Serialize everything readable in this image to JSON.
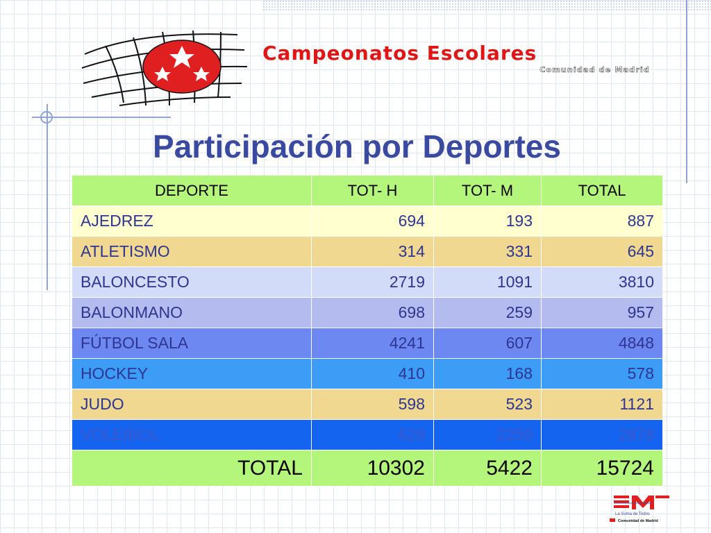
{
  "brand": {
    "title": "Campeonatos Escolares",
    "subtitle": "Comunidad de Madrid"
  },
  "page": {
    "title": "Participación por Deportes"
  },
  "colors": {
    "title": "#3a4aa0",
    "header_bg": "#b4f57c",
    "brand_red": "#e01616"
  },
  "table": {
    "headers": [
      "DEPORTE",
      "TOT- H",
      "TOT- M",
      "TOTAL"
    ],
    "rows": [
      {
        "sport": "AJEDREZ",
        "h": "694",
        "m": "193",
        "total": "887",
        "bg": "#ffffd0",
        "fg": "#2e3590"
      },
      {
        "sport": "ATLETISMO",
        "h": "314",
        "m": "331",
        "total": "645",
        "bg": "#f0d890",
        "fg": "#2e3590"
      },
      {
        "sport": "BALONCESTO",
        "h": "2719",
        "m": "1091",
        "total": "3810",
        "bg": "#d2dcf8",
        "fg": "#2e3590"
      },
      {
        "sport": "BALONMANO",
        "h": "698",
        "m": "259",
        "total": "957",
        "bg": "#b4bcef",
        "fg": "#2e3590"
      },
      {
        "sport": "FÚTBOL SALA",
        "h": "4241",
        "m": "607",
        "total": "4848",
        "bg": "#6e88f2",
        "fg": "#2e3590"
      },
      {
        "sport": "HOCKEY",
        "h": "410",
        "m": "168",
        "total": "578",
        "bg": "#3c9cf6",
        "fg": "#2e3590"
      },
      {
        "sport": "JUDO",
        "h": "598",
        "m": "523",
        "total": "1121",
        "bg": "#f0d890",
        "fg": "#2e3590"
      },
      {
        "sport": "VOLEIBOL",
        "h": "628",
        "m": "2250",
        "total": "2878",
        "bg": "#1464f0",
        "fg": "#3e56c8"
      }
    ],
    "total_row": {
      "label": "TOTAL",
      "h": "10302",
      "m": "5422",
      "total": "15724"
    }
  },
  "footer": {
    "tagline": "La Suma de Todos",
    "org": "Comunidad de Madrid"
  }
}
